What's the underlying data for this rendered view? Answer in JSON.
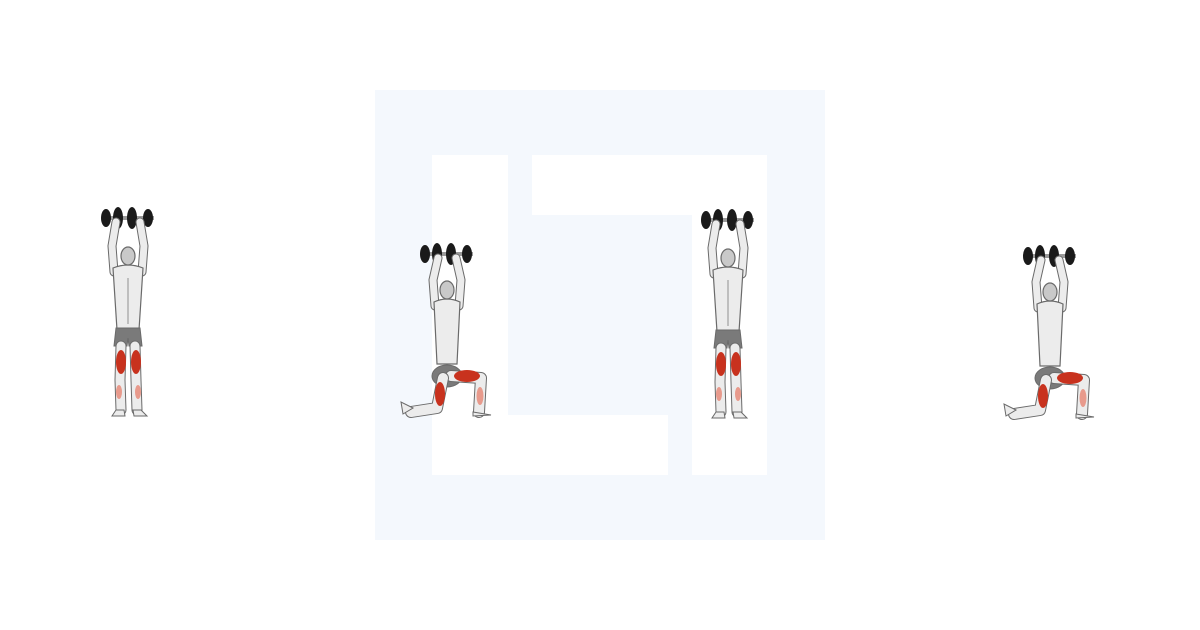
{
  "colors": {
    "background": "#ffffff",
    "watermark_square": "#f4f8fd",
    "watermark_cutout": "#ffffff",
    "skin_light": "#ececec",
    "skin_mid": "#c9c9c9",
    "skin_shadow": "#8f8f8f",
    "outline": "#6a6a6a",
    "shorts": "#7a7a7a",
    "muscle_primary": "#c8321e",
    "muscle_secondary": "#e89a8c",
    "dumbbell_plate": "#1a1a1a",
    "dumbbell_bar": "#9a9a9a"
  },
  "icons": {
    "watermark": "logo-watermark-icon",
    "figures": [
      "standing-overhead-dumbbell-figure",
      "kneeling-lunge-overhead-dumbbell-figure"
    ]
  },
  "figures": [
    {
      "pose": "standing",
      "view": "front",
      "highlighted_muscles": [
        "quadriceps",
        "calves"
      ]
    },
    {
      "pose": "lunge",
      "view": "side",
      "highlighted_muscles": [
        "quadriceps",
        "hamstrings",
        "glutes"
      ]
    },
    {
      "pose": "standing",
      "view": "front",
      "highlighted_muscles": [
        "quadriceps",
        "calves"
      ]
    },
    {
      "pose": "lunge",
      "view": "front",
      "highlighted_muscles": [
        "quadriceps",
        "hamstrings",
        "glutes"
      ]
    }
  ]
}
